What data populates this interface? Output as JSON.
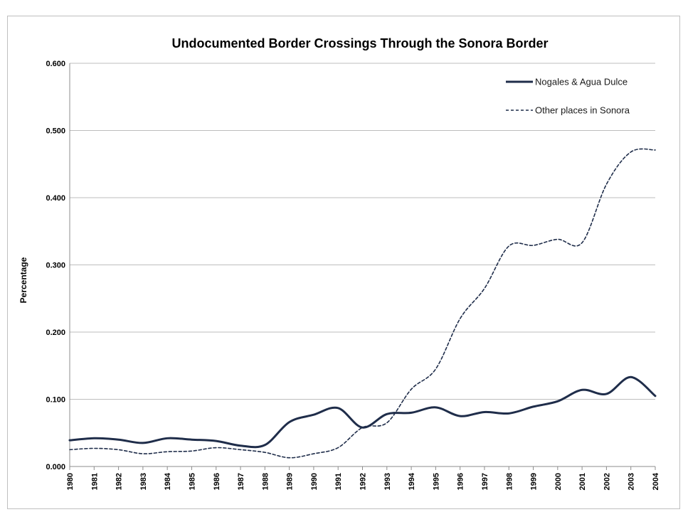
{
  "chart_data": {
    "type": "line",
    "title": "Undocumented Border Crossings Through the Sonora Border",
    "xlabel": "",
    "ylabel": "Percentage",
    "ylim": [
      0,
      0.6
    ],
    "y_ticks": [
      "0.000",
      "0.100",
      "0.200",
      "0.300",
      "0.400",
      "0.500",
      "0.600"
    ],
    "x": [
      "1980",
      "1981",
      "1982",
      "1983",
      "1984",
      "1985",
      "1986",
      "1987",
      "1988",
      "1989",
      "1990",
      "1991",
      "1992",
      "1993",
      "1994",
      "1995",
      "1996",
      "1997",
      "1998",
      "1999",
      "2000",
      "2001",
      "2002",
      "2003",
      "2004"
    ],
    "grid": true,
    "legend_position": "top-right",
    "series": [
      {
        "name": "Nogales & Agua Dulce",
        "style": "solid",
        "color": "#1f2d4a",
        "values": [
          0.039,
          0.042,
          0.04,
          0.035,
          0.042,
          0.04,
          0.038,
          0.031,
          0.032,
          0.066,
          0.077,
          0.087,
          0.058,
          0.078,
          0.08,
          0.088,
          0.075,
          0.081,
          0.079,
          0.089,
          0.097,
          0.114,
          0.108,
          0.133,
          0.105
        ]
      },
      {
        "name": "Other places in Sonora",
        "style": "dashed",
        "color": "#1f2d4a",
        "values": [
          0.025,
          0.027,
          0.025,
          0.019,
          0.022,
          0.023,
          0.028,
          0.025,
          0.021,
          0.013,
          0.019,
          0.028,
          0.058,
          0.065,
          0.115,
          0.145,
          0.22,
          0.265,
          0.328,
          0.329,
          0.338,
          0.333,
          0.42,
          0.468,
          0.471
        ]
      }
    ]
  }
}
